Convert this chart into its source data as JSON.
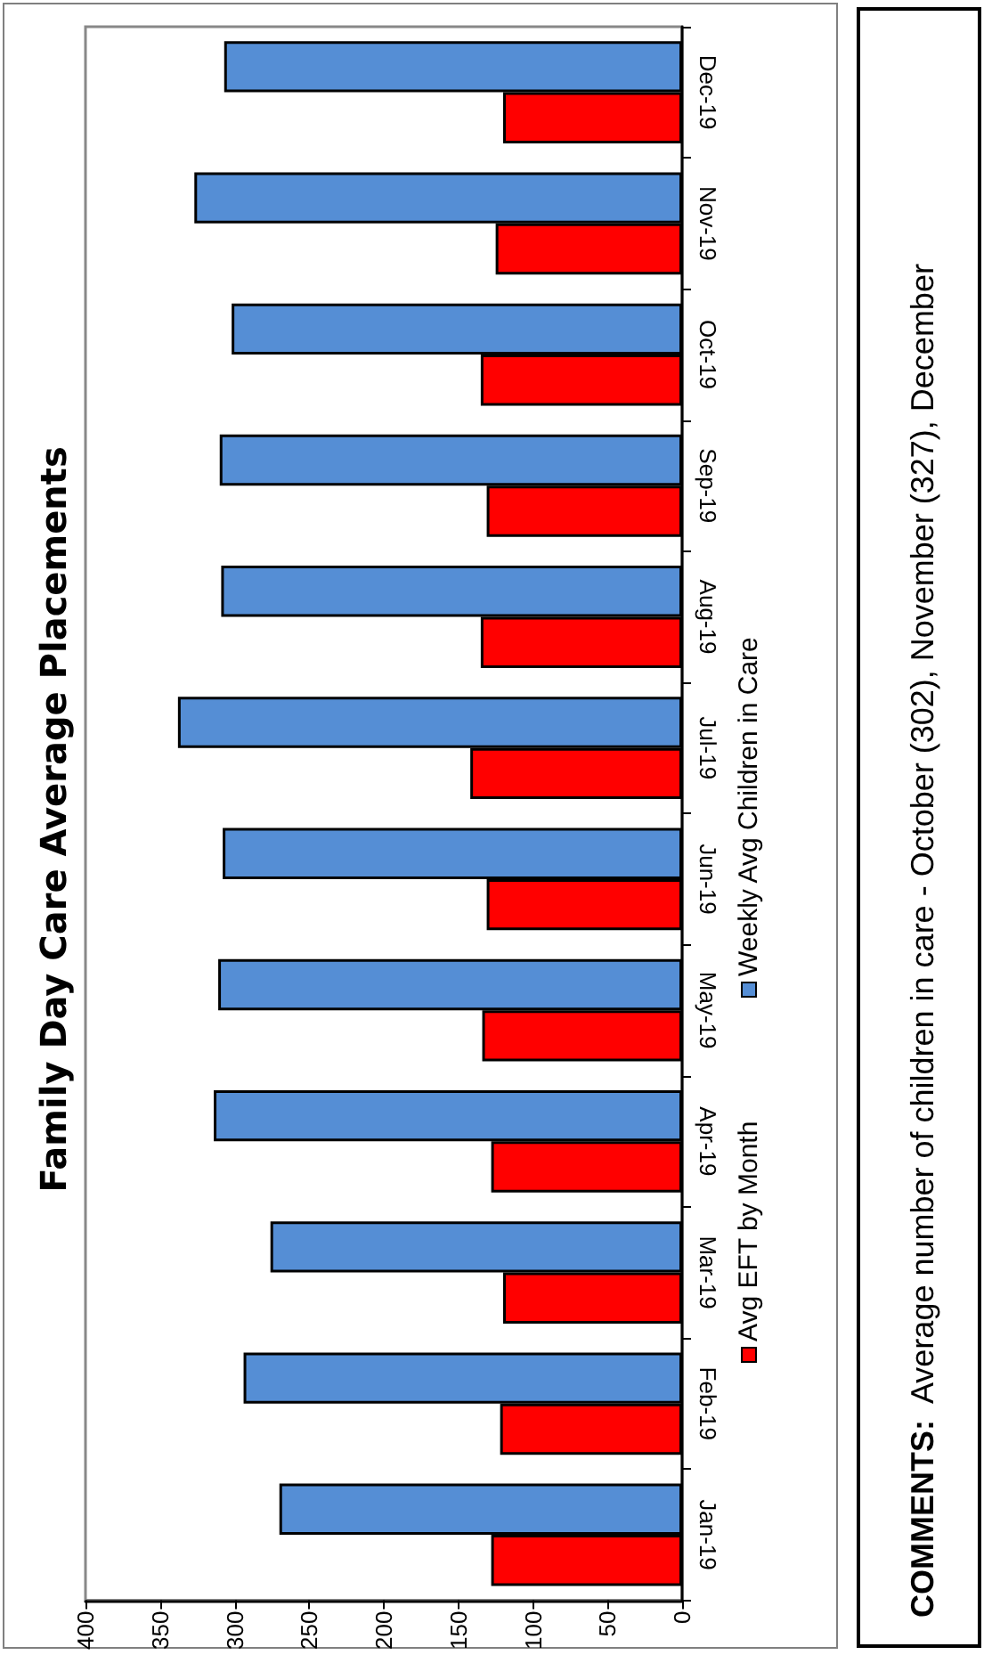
{
  "chart_data": {
    "type": "bar",
    "orientation": "horizontal",
    "title": "Family Day Care Average Placements",
    "categories": [
      "Dec-19",
      "Nov-19",
      "Oct-19",
      "Sep-19",
      "Aug-19",
      "Jul-19",
      "Jun-19",
      "May-19",
      "Apr-19",
      "Mar-19",
      "Feb-19",
      "Jan-19"
    ],
    "series": [
      {
        "name": "Avg EFT by Month",
        "color": "#ff0000",
        "values": [
          120,
          125,
          135,
          131,
          135,
          142,
          131,
          134,
          128,
          120,
          122,
          128
        ]
      },
      {
        "name": "Weekly Avg Children in Care",
        "color": "#558ed5",
        "values": [
          307,
          327,
          302,
          310,
          309,
          338,
          308,
          311,
          314,
          276,
          294,
          270
        ]
      }
    ],
    "xlim": [
      400,
      0
    ],
    "xticks": [
      400,
      350,
      300,
      250,
      200,
      150,
      100,
      50,
      0
    ],
    "grid": false,
    "legend": "bottom",
    "annotations": [
      "COMMENTS:  Average number of children in care - October (302), November (327), December"
    ]
  }
}
